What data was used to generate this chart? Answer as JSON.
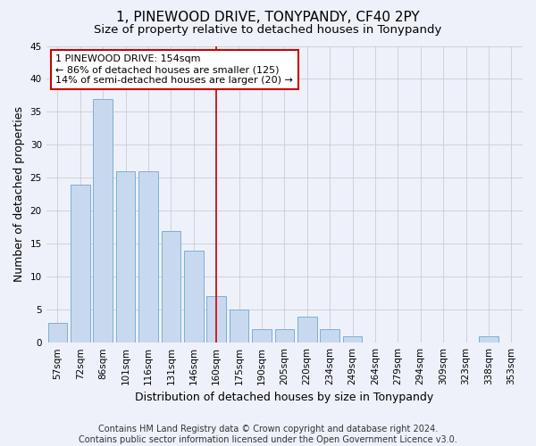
{
  "title": "1, PINEWOOD DRIVE, TONYPANDY, CF40 2PY",
  "subtitle": "Size of property relative to detached houses in Tonypandy",
  "xlabel": "Distribution of detached houses by size in Tonypandy",
  "ylabel": "Number of detached properties",
  "categories": [
    "57sqm",
    "72sqm",
    "86sqm",
    "101sqm",
    "116sqm",
    "131sqm",
    "146sqm",
    "160sqm",
    "175sqm",
    "190sqm",
    "205sqm",
    "220sqm",
    "234sqm",
    "249sqm",
    "264sqm",
    "279sqm",
    "294sqm",
    "309sqm",
    "323sqm",
    "338sqm",
    "353sqm"
  ],
  "values": [
    3,
    24,
    37,
    26,
    26,
    17,
    14,
    7,
    5,
    2,
    2,
    4,
    2,
    1,
    0,
    0,
    0,
    0,
    0,
    1,
    0
  ],
  "bar_color": "#c8d9ef",
  "bar_edge_color": "#7aafd4",
  "grid_color": "#cccccc",
  "background_color": "#eef1fa",
  "vline_pos": 7.0,
  "vline_color": "#cc0000",
  "annotation_text": "1 PINEWOOD DRIVE: 154sqm\n← 86% of detached houses are smaller (125)\n14% of semi-detached houses are larger (20) →",
  "annotation_box_color": "#ffffff",
  "annotation_box_edge": "#cc0000",
  "ylim": [
    0,
    45
  ],
  "yticks": [
    0,
    5,
    10,
    15,
    20,
    25,
    30,
    35,
    40,
    45
  ],
  "footer": "Contains HM Land Registry data © Crown copyright and database right 2024.\nContains public sector information licensed under the Open Government Licence v3.0.",
  "title_fontsize": 11,
  "subtitle_fontsize": 9.5,
  "ylabel_fontsize": 9,
  "xlabel_fontsize": 9,
  "tick_fontsize": 7.5,
  "footer_fontsize": 7,
  "annotation_fontsize": 8
}
